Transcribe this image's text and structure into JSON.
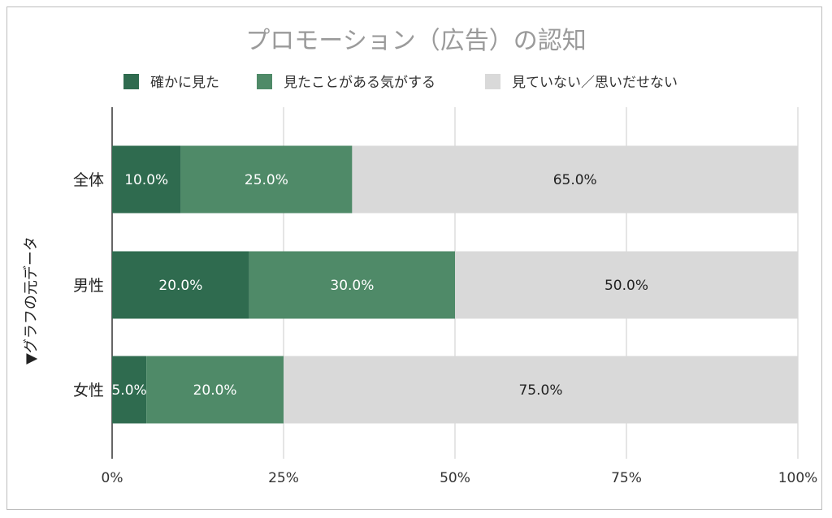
{
  "chart_data": {
    "type": "bar",
    "orientation": "horizontal",
    "stacked": true,
    "percent_stacked": true,
    "title": "プロモーション（広告）の認知",
    "ylabel": "▼グラフの元データ",
    "xlabel": "",
    "categories": [
      "全体",
      "男性",
      "女性"
    ],
    "xlim": [
      0,
      100
    ],
    "x_ticks": [
      "0%",
      "25%",
      "50%",
      "75%",
      "100%"
    ],
    "grid": true,
    "legend_position": "top",
    "series": [
      {
        "name": "確かに見た",
        "color": "#2f6b4f",
        "label_color": "#ffffff",
        "values": [
          10.0,
          20.0,
          5.0
        ],
        "labels": [
          "10.0%",
          "20.0%",
          "5.0%"
        ]
      },
      {
        "name": "見たことがある気がする",
        "color": "#4f8a68",
        "label_color": "#ffffff",
        "values": [
          25.0,
          30.0,
          20.0
        ],
        "labels": [
          "25.0%",
          "30.0%",
          "20.0%"
        ]
      },
      {
        "name": "見ていない／思いだせない",
        "color": "#d9d9d9",
        "label_color": "#222222",
        "values": [
          65.0,
          50.0,
          75.0
        ],
        "labels": [
          "65.0%",
          "50.0%",
          "75.0%"
        ]
      }
    ]
  }
}
